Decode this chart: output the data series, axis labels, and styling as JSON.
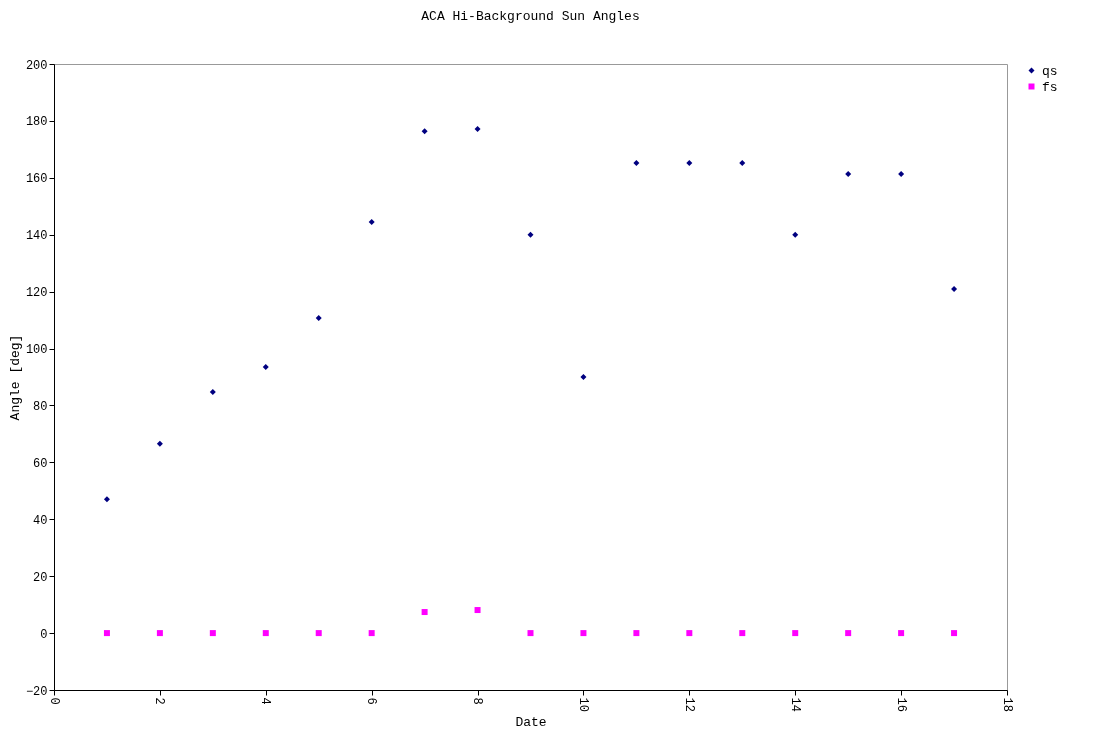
{
  "chart_data": {
    "type": "scatter",
    "title": "ACA Hi-Background Sun Angles",
    "xlabel": "Date",
    "ylabel": "Angle [deg]",
    "x": [
      1,
      2,
      3,
      4,
      5,
      6,
      7,
      8,
      9,
      10,
      11,
      12,
      13,
      14,
      15,
      16,
      17
    ],
    "series": [
      {
        "name": "qs",
        "color": "#000080",
        "marker": "diamond",
        "values": [
          47,
          66.5,
          84.7,
          93.5,
          110.7,
          144.5,
          176.4,
          177.2,
          140,
          90,
          165.2,
          165.2,
          165.2,
          140,
          161.3,
          161.3,
          120.9
        ]
      },
      {
        "name": "fs",
        "color": "#ff00ff",
        "marker": "square",
        "values": [
          0,
          0,
          0,
          0,
          0,
          0,
          7.4,
          8.1,
          0,
          0,
          0,
          0,
          0,
          0,
          0,
          0,
          0
        ]
      }
    ],
    "xlim": [
      0,
      18
    ],
    "xticks": [
      0,
      2,
      4,
      6,
      8,
      10,
      12,
      14,
      16,
      18
    ],
    "ylim": [
      -20,
      200
    ],
    "yticks": [
      -20,
      0,
      20,
      40,
      60,
      80,
      100,
      120,
      140,
      160,
      180,
      200
    ],
    "grid": false,
    "legend": "right"
  }
}
